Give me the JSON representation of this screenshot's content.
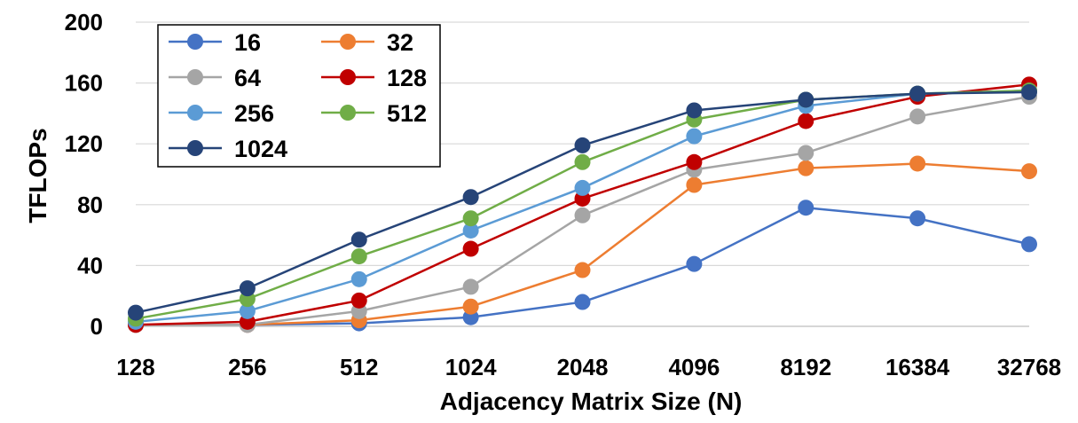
{
  "chart_data": {
    "type": "line",
    "title": "",
    "xlabel": "Adjacency Matrix Size (N)",
    "ylabel": "TFLOPs",
    "categories": [
      "128",
      "256",
      "512",
      "1024",
      "2048",
      "4096",
      "8192",
      "16384",
      "32768"
    ],
    "ylim": [
      0,
      200
    ],
    "yticks": [
      "0",
      "40",
      "80",
      "120",
      "160",
      "200"
    ],
    "grid": "horizontal",
    "legend_position": "top-left",
    "series": [
      {
        "name": "16",
        "color": "#4472C4",
        "values": [
          1,
          1,
          2,
          6,
          16,
          41,
          78,
          71,
          54
        ]
      },
      {
        "name": "32",
        "color": "#ED7D31",
        "values": [
          1,
          1,
          4,
          13,
          37,
          93,
          104,
          107,
          102
        ]
      },
      {
        "name": "64",
        "color": "#A5A5A5",
        "values": [
          1,
          1,
          10,
          26,
          73,
          103,
          114,
          138,
          151
        ]
      },
      {
        "name": "128",
        "color": "#C00000",
        "values": [
          1,
          3,
          17,
          51,
          84,
          108,
          135,
          151,
          159
        ]
      },
      {
        "name": "256",
        "color": "#5B9BD5",
        "values": [
          3,
          10,
          31,
          63,
          91,
          125,
          145,
          153,
          155
        ]
      },
      {
        "name": "512",
        "color": "#70AD47",
        "values": [
          5,
          18,
          46,
          71,
          108,
          136,
          149,
          153,
          155
        ]
      },
      {
        "name": "1024",
        "color": "#264478",
        "values": [
          9,
          25,
          57,
          85,
          119,
          142,
          149,
          153,
          154
        ]
      }
    ]
  }
}
